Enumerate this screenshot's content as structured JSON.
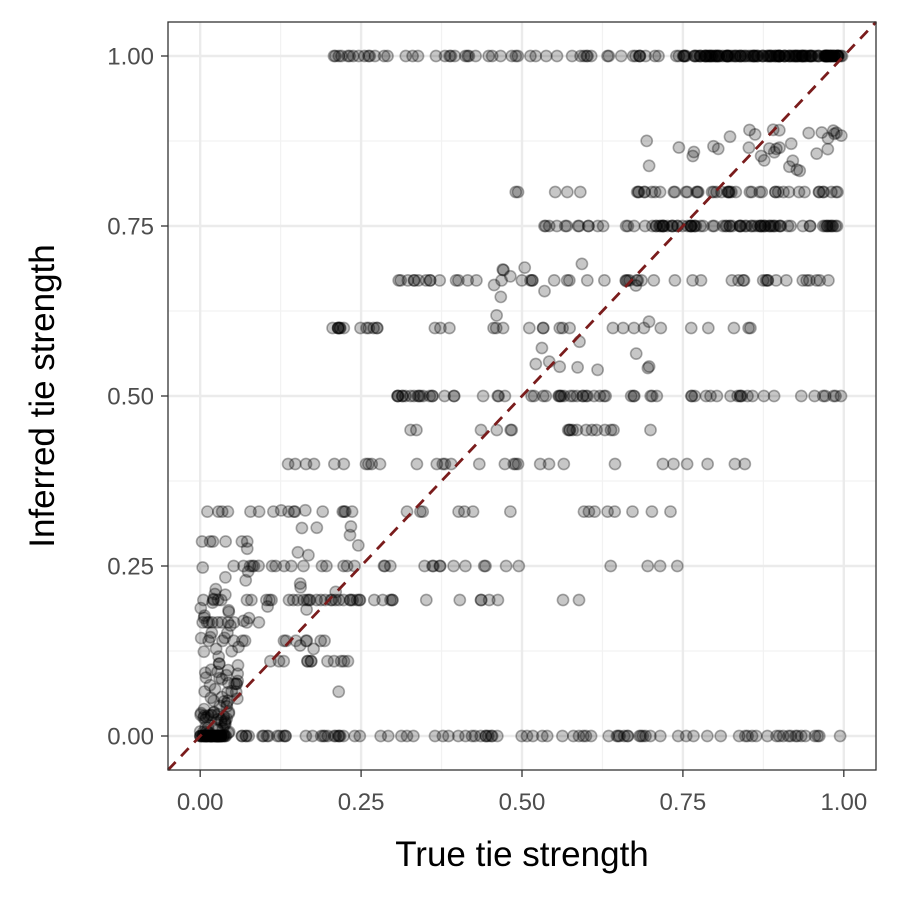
{
  "chart_data": {
    "type": "scatter",
    "title": "",
    "xlabel": "True tie strength",
    "ylabel": "Inferred tie strength",
    "xlim": [
      -0.05,
      1.05
    ],
    "ylim": [
      -0.05,
      1.05
    ],
    "x_ticks": [
      0,
      0.25,
      0.5,
      0.75,
      1
    ],
    "y_ticks": [
      0,
      0.25,
      0.5,
      0.75,
      1
    ],
    "x_tick_labels": [
      "0.00",
      "0.25",
      "0.50",
      "0.75",
      "1.00"
    ],
    "y_tick_labels": [
      "0.00",
      "0.25",
      "0.50",
      "0.75",
      "1.00"
    ],
    "grid": true,
    "legend": "none",
    "point_color": "#000000",
    "point_alpha": 0.22,
    "reference_line": {
      "from": [
        -0.05,
        -0.05
      ],
      "to": [
        1.05,
        1.05
      ],
      "color": "#7a1c1c",
      "style": "dashed"
    },
    "band_ranges": [
      [
        0.0,
        0.04,
        0.0,
        0.0,
        60
      ],
      [
        0.04,
        0.3,
        0.0,
        0.0,
        30
      ],
      [
        0.3,
        0.8,
        0.0,
        0.0,
        45
      ],
      [
        0.8,
        1.0,
        0.0,
        0.0,
        20
      ],
      [
        0.2,
        0.8,
        1.0,
        1.0,
        60
      ],
      [
        0.75,
        1.0,
        1.0,
        1.0,
        140
      ],
      [
        0.3,
        0.85,
        0.5,
        0.5,
        55
      ],
      [
        0.8,
        1.0,
        0.5,
        0.5,
        15
      ],
      [
        0.53,
        0.85,
        0.75,
        0.75,
        30
      ],
      [
        0.7,
        1.0,
        0.75,
        0.75,
        60
      ],
      [
        0.68,
        1.0,
        0.8,
        0.8,
        40
      ],
      [
        0.45,
        0.7,
        0.8,
        0.8,
        8
      ],
      [
        0.3,
        0.7,
        0.67,
        0.67,
        30
      ],
      [
        0.68,
        1.0,
        0.67,
        0.67,
        20
      ],
      [
        0.2,
        0.6,
        0.6,
        0.6,
        25
      ],
      [
        0.6,
        0.9,
        0.6,
        0.6,
        10
      ],
      [
        0.1,
        0.5,
        0.4,
        0.4,
        20
      ],
      [
        0.5,
        0.85,
        0.4,
        0.4,
        10
      ],
      [
        0.28,
        0.7,
        0.45,
        0.45,
        18
      ],
      [
        0.0,
        0.3,
        0.2,
        0.2,
        35
      ],
      [
        0.35,
        0.65,
        0.2,
        0.2,
        8
      ],
      [
        0.0,
        0.3,
        0.25,
        0.25,
        18
      ],
      [
        0.3,
        0.75,
        0.25,
        0.25,
        15
      ],
      [
        0.0,
        0.25,
        0.33,
        0.33,
        15
      ],
      [
        0.25,
        0.8,
        0.33,
        0.33,
        15
      ],
      [
        0.0,
        0.2,
        0.14,
        0.14,
        12
      ],
      [
        0.1,
        0.25,
        0.11,
        0.11,
        12
      ],
      [
        0.0,
        0.1,
        0.167,
        0.167,
        10
      ],
      [
        0.0,
        0.1,
        0.286,
        0.286,
        6
      ],
      [
        0.0,
        0.06,
        0.05,
        0.1,
        25
      ],
      [
        0.0,
        0.08,
        0.1,
        0.25,
        30
      ],
      [
        0.05,
        0.25,
        0.05,
        0.35,
        20
      ],
      [
        0.85,
        1.0,
        0.83,
        0.9,
        25
      ],
      [
        0.68,
        0.85,
        0.83,
        0.9,
        8
      ],
      [
        0.5,
        0.7,
        0.53,
        0.58,
        10
      ],
      [
        0.45,
        0.7,
        0.6,
        0.7,
        12
      ],
      [
        0.0,
        0.05,
        0.0,
        0.05,
        40
      ]
    ]
  }
}
